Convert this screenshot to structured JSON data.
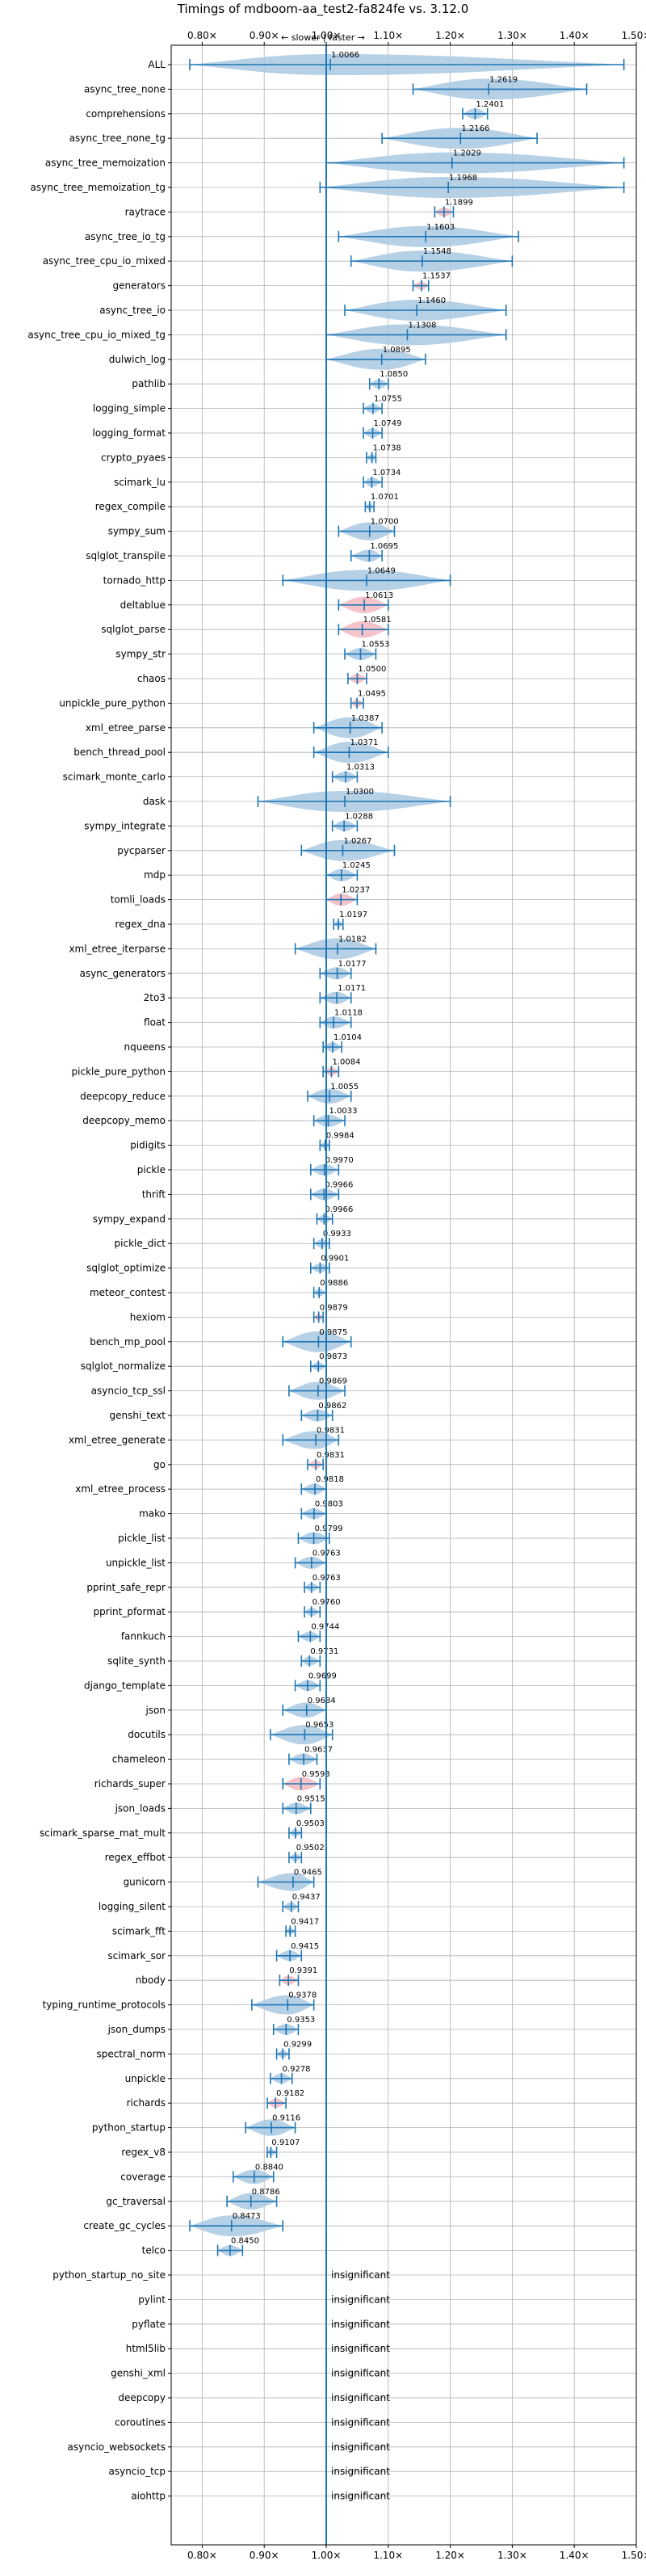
{
  "chart_data": {
    "type": "violin",
    "title": "Timings of mdboom-aa_test2-fa824fe vs. 3.12.0",
    "subtitle": "← slower | faster →",
    "xlim": [
      0.75,
      1.5
    ],
    "xticks": [
      {
        "v": 0.8,
        "label": "0.80×"
      },
      {
        "v": 0.9,
        "label": "0.90×"
      },
      {
        "v": 1.0,
        "label": "1.00×"
      },
      {
        "v": 1.1,
        "label": "1.10×"
      },
      {
        "v": 1.2,
        "label": "1.20×"
      },
      {
        "v": 1.3,
        "label": "1.30×"
      },
      {
        "v": 1.4,
        "label": "1.40×"
      },
      {
        "v": 1.5,
        "label": "1.50×"
      }
    ],
    "grid": true,
    "reference_line": 1.0,
    "insignificant_label": "insignificant",
    "colors": {
      "normal": "#a9c8e2",
      "highlight": "#f3b8bf",
      "line": "#1f77b4",
      "grid": "#b0b0b0"
    },
    "benchmarks": [
      {
        "name": "ALL",
        "median": 1.0066,
        "label": "1.0066",
        "min": 0.78,
        "max": 1.48,
        "hl": false
      },
      {
        "name": "async_tree_none",
        "median": 1.2619,
        "label": "1.2619",
        "min": 1.14,
        "max": 1.42,
        "hl": false
      },
      {
        "name": "comprehensions",
        "median": 1.2401,
        "label": "1.2401",
        "min": 1.22,
        "max": 1.26,
        "hl": false
      },
      {
        "name": "async_tree_none_tg",
        "median": 1.2166,
        "label": "1.2166",
        "min": 1.09,
        "max": 1.34,
        "hl": false
      },
      {
        "name": "async_tree_memoization",
        "median": 1.2029,
        "label": "1.2029",
        "min": 1.0,
        "max": 1.48,
        "hl": false
      },
      {
        "name": "async_tree_memoization_tg",
        "median": 1.1968,
        "label": "1.1968",
        "min": 0.99,
        "max": 1.48,
        "hl": false
      },
      {
        "name": "raytrace",
        "median": 1.1899,
        "label": "1.1899",
        "min": 1.175,
        "max": 1.205,
        "hl": true
      },
      {
        "name": "async_tree_io_tg",
        "median": 1.1603,
        "label": "1.1603",
        "min": 1.02,
        "max": 1.31,
        "hl": false
      },
      {
        "name": "async_tree_cpu_io_mixed",
        "median": 1.1548,
        "label": "1.1548",
        "min": 1.04,
        "max": 1.3,
        "hl": false
      },
      {
        "name": "generators",
        "median": 1.1537,
        "label": "1.1537",
        "min": 1.14,
        "max": 1.165,
        "hl": true
      },
      {
        "name": "async_tree_io",
        "median": 1.146,
        "label": "1.1460",
        "min": 1.03,
        "max": 1.29,
        "hl": false
      },
      {
        "name": "async_tree_cpu_io_mixed_tg",
        "median": 1.1308,
        "label": "1.1308",
        "min": 1.0,
        "max": 1.29,
        "hl": false
      },
      {
        "name": "dulwich_log",
        "median": 1.0895,
        "label": "1.0895",
        "min": 1.0,
        "max": 1.16,
        "hl": false
      },
      {
        "name": "pathlib",
        "median": 1.085,
        "label": "1.0850",
        "min": 1.07,
        "max": 1.1,
        "hl": false
      },
      {
        "name": "logging_simple",
        "median": 1.0755,
        "label": "1.0755",
        "min": 1.06,
        "max": 1.09,
        "hl": false
      },
      {
        "name": "logging_format",
        "median": 1.0749,
        "label": "1.0749",
        "min": 1.06,
        "max": 1.09,
        "hl": false
      },
      {
        "name": "crypto_pyaes",
        "median": 1.0738,
        "label": "1.0738",
        "min": 1.065,
        "max": 1.08,
        "hl": false
      },
      {
        "name": "scimark_lu",
        "median": 1.0734,
        "label": "1.0734",
        "min": 1.06,
        "max": 1.09,
        "hl": false
      },
      {
        "name": "regex_compile",
        "median": 1.0701,
        "label": "1.0701",
        "min": 1.063,
        "max": 1.077,
        "hl": false
      },
      {
        "name": "sympy_sum",
        "median": 1.07,
        "label": "1.0700",
        "min": 1.02,
        "max": 1.11,
        "hl": false
      },
      {
        "name": "sqlglot_transpile",
        "median": 1.0695,
        "label": "1.0695",
        "min": 1.04,
        "max": 1.09,
        "hl": false
      },
      {
        "name": "tornado_http",
        "median": 1.0649,
        "label": "1.0649",
        "min": 0.93,
        "max": 1.2,
        "hl": false
      },
      {
        "name": "deltablue",
        "median": 1.0613,
        "label": "1.0613",
        "min": 1.02,
        "max": 1.1,
        "hl": true
      },
      {
        "name": "sqlglot_parse",
        "median": 1.0581,
        "label": "1.0581",
        "min": 1.02,
        "max": 1.1,
        "hl": true
      },
      {
        "name": "sympy_str",
        "median": 1.0553,
        "label": "1.0553",
        "min": 1.03,
        "max": 1.08,
        "hl": false
      },
      {
        "name": "chaos",
        "median": 1.05,
        "label": "1.0500",
        "min": 1.035,
        "max": 1.065,
        "hl": true
      },
      {
        "name": "unpickle_pure_python",
        "median": 1.0495,
        "label": "1.0495",
        "min": 1.04,
        "max": 1.06,
        "hl": true
      },
      {
        "name": "xml_etree_parse",
        "median": 1.0387,
        "label": "1.0387",
        "min": 0.98,
        "max": 1.09,
        "hl": false
      },
      {
        "name": "bench_thread_pool",
        "median": 1.0371,
        "label": "1.0371",
        "min": 0.98,
        "max": 1.1,
        "hl": false
      },
      {
        "name": "scimark_monte_carlo",
        "median": 1.0313,
        "label": "1.0313",
        "min": 1.01,
        "max": 1.05,
        "hl": false
      },
      {
        "name": "dask",
        "median": 1.03,
        "label": "1.0300",
        "min": 0.89,
        "max": 1.2,
        "hl": false
      },
      {
        "name": "sympy_integrate",
        "median": 1.0288,
        "label": "1.0288",
        "min": 1.01,
        "max": 1.05,
        "hl": false
      },
      {
        "name": "pycparser",
        "median": 1.0267,
        "label": "1.0267",
        "min": 0.96,
        "max": 1.11,
        "hl": false
      },
      {
        "name": "mdp",
        "median": 1.0245,
        "label": "1.0245",
        "min": 1.0,
        "max": 1.05,
        "hl": false
      },
      {
        "name": "tomli_loads",
        "median": 1.0237,
        "label": "1.0237",
        "min": 1.0,
        "max": 1.05,
        "hl": true
      },
      {
        "name": "regex_dna",
        "median": 1.0197,
        "label": "1.0197",
        "min": 1.012,
        "max": 1.027,
        "hl": false
      },
      {
        "name": "xml_etree_iterparse",
        "median": 1.0182,
        "label": "1.0182",
        "min": 0.95,
        "max": 1.08,
        "hl": false
      },
      {
        "name": "async_generators",
        "median": 1.0177,
        "label": "1.0177",
        "min": 0.99,
        "max": 1.04,
        "hl": false
      },
      {
        "name": "2to3",
        "median": 1.0171,
        "label": "1.0171",
        "min": 0.99,
        "max": 1.04,
        "hl": false
      },
      {
        "name": "float",
        "median": 1.0118,
        "label": "1.0118",
        "min": 0.99,
        "max": 1.04,
        "hl": false
      },
      {
        "name": "nqueens",
        "median": 1.0104,
        "label": "1.0104",
        "min": 0.995,
        "max": 1.025,
        "hl": false
      },
      {
        "name": "pickle_pure_python",
        "median": 1.0084,
        "label": "1.0084",
        "min": 0.995,
        "max": 1.02,
        "hl": true
      },
      {
        "name": "deepcopy_reduce",
        "median": 1.0055,
        "label": "1.0055",
        "min": 0.97,
        "max": 1.04,
        "hl": false
      },
      {
        "name": "deepcopy_memo",
        "median": 1.0033,
        "label": "1.0033",
        "min": 0.98,
        "max": 1.03,
        "hl": false
      },
      {
        "name": "pidigits",
        "median": 0.9984,
        "label": "0.9984",
        "min": 0.99,
        "max": 1.005,
        "hl": false
      },
      {
        "name": "pickle",
        "median": 0.997,
        "label": "0.9970",
        "min": 0.975,
        "max": 1.02,
        "hl": false
      },
      {
        "name": "thrift",
        "median": 0.9966,
        "label": "0.9966",
        "min": 0.975,
        "max": 1.02,
        "hl": false
      },
      {
        "name": "sympy_expand",
        "median": 0.9966,
        "label": "0.9966",
        "min": 0.985,
        "max": 1.01,
        "hl": false
      },
      {
        "name": "pickle_dict",
        "median": 0.9933,
        "label": "0.9933",
        "min": 0.98,
        "max": 1.005,
        "hl": false
      },
      {
        "name": "sqlglot_optimize",
        "median": 0.9901,
        "label": "0.9901",
        "min": 0.975,
        "max": 1.005,
        "hl": false
      },
      {
        "name": "meteor_contest",
        "median": 0.9886,
        "label": "0.9886",
        "min": 0.98,
        "max": 1.0,
        "hl": false
      },
      {
        "name": "hexiom",
        "median": 0.9879,
        "label": "0.9879",
        "min": 0.98,
        "max": 0.995,
        "hl": true
      },
      {
        "name": "bench_mp_pool",
        "median": 0.9875,
        "label": "0.9875",
        "min": 0.93,
        "max": 1.04,
        "hl": false
      },
      {
        "name": "sqlglot_normalize",
        "median": 0.9873,
        "label": "0.9873",
        "min": 0.975,
        "max": 1.0,
        "hl": false
      },
      {
        "name": "asyncio_tcp_ssl",
        "median": 0.9869,
        "label": "0.9869",
        "min": 0.94,
        "max": 1.03,
        "hl": false
      },
      {
        "name": "genshi_text",
        "median": 0.9862,
        "label": "0.9862",
        "min": 0.96,
        "max": 1.01,
        "hl": false
      },
      {
        "name": "xml_etree_generate",
        "median": 0.9831,
        "label": "0.9831",
        "min": 0.93,
        "max": 1.02,
        "hl": false
      },
      {
        "name": "go",
        "median": 0.9831,
        "label": "0.9831",
        "min": 0.97,
        "max": 0.995,
        "hl": true
      },
      {
        "name": "xml_etree_process",
        "median": 0.9818,
        "label": "0.9818",
        "min": 0.96,
        "max": 1.0,
        "hl": false
      },
      {
        "name": "mako",
        "median": 0.9803,
        "label": "0.9803",
        "min": 0.96,
        "max": 1.0,
        "hl": false
      },
      {
        "name": "pickle_list",
        "median": 0.9799,
        "label": "0.9799",
        "min": 0.955,
        "max": 1.005,
        "hl": false
      },
      {
        "name": "unpickle_list",
        "median": 0.9763,
        "label": "0.9763",
        "min": 0.95,
        "max": 1.0,
        "hl": false
      },
      {
        "name": "pprint_safe_repr",
        "median": 0.9763,
        "label": "0.9763",
        "min": 0.965,
        "max": 0.99,
        "hl": false
      },
      {
        "name": "pprint_pformat",
        "median": 0.976,
        "label": "0.9760",
        "min": 0.965,
        "max": 0.99,
        "hl": false
      },
      {
        "name": "fannkuch",
        "median": 0.9744,
        "label": "0.9744",
        "min": 0.955,
        "max": 0.99,
        "hl": false
      },
      {
        "name": "sqlite_synth",
        "median": 0.9731,
        "label": "0.9731",
        "min": 0.96,
        "max": 0.99,
        "hl": false
      },
      {
        "name": "django_template",
        "median": 0.9699,
        "label": "0.9699",
        "min": 0.95,
        "max": 0.99,
        "hl": false
      },
      {
        "name": "json",
        "median": 0.9684,
        "label": "0.9684",
        "min": 0.93,
        "max": 1.0,
        "hl": false
      },
      {
        "name": "docutils",
        "median": 0.9653,
        "label": "0.9653",
        "min": 0.91,
        "max": 1.01,
        "hl": false
      },
      {
        "name": "chameleon",
        "median": 0.9637,
        "label": "0.9637",
        "min": 0.94,
        "max": 0.985,
        "hl": false
      },
      {
        "name": "richards_super",
        "median": 0.9593,
        "label": "0.9593",
        "min": 0.93,
        "max": 0.99,
        "hl": true
      },
      {
        "name": "json_loads",
        "median": 0.9515,
        "label": "0.9515",
        "min": 0.93,
        "max": 0.975,
        "hl": false
      },
      {
        "name": "scimark_sparse_mat_mult",
        "median": 0.9503,
        "label": "0.9503",
        "min": 0.94,
        "max": 0.96,
        "hl": false
      },
      {
        "name": "regex_effbot",
        "median": 0.9502,
        "label": "0.9502",
        "min": 0.94,
        "max": 0.96,
        "hl": false
      },
      {
        "name": "gunicorn",
        "median": 0.9465,
        "label": "0.9465",
        "min": 0.89,
        "max": 0.98,
        "hl": false
      },
      {
        "name": "logging_silent",
        "median": 0.9437,
        "label": "0.9437",
        "min": 0.93,
        "max": 0.955,
        "hl": false
      },
      {
        "name": "scimark_fft",
        "median": 0.9417,
        "label": "0.9417",
        "min": 0.935,
        "max": 0.95,
        "hl": false
      },
      {
        "name": "scimark_sor",
        "median": 0.9415,
        "label": "0.9415",
        "min": 0.92,
        "max": 0.96,
        "hl": false
      },
      {
        "name": "nbody",
        "median": 0.9391,
        "label": "0.9391",
        "min": 0.925,
        "max": 0.955,
        "hl": true
      },
      {
        "name": "typing_runtime_protocols",
        "median": 0.9378,
        "label": "0.9378",
        "min": 0.88,
        "max": 0.98,
        "hl": false
      },
      {
        "name": "json_dumps",
        "median": 0.9353,
        "label": "0.9353",
        "min": 0.915,
        "max": 0.955,
        "hl": false
      },
      {
        "name": "spectral_norm",
        "median": 0.9299,
        "label": "0.9299",
        "min": 0.92,
        "max": 0.94,
        "hl": false
      },
      {
        "name": "unpickle",
        "median": 0.9278,
        "label": "0.9278",
        "min": 0.91,
        "max": 0.945,
        "hl": false
      },
      {
        "name": "richards",
        "median": 0.9182,
        "label": "0.9182",
        "min": 0.905,
        "max": 0.935,
        "hl": true
      },
      {
        "name": "python_startup",
        "median": 0.9116,
        "label": "0.9116",
        "min": 0.87,
        "max": 0.95,
        "hl": false
      },
      {
        "name": "regex_v8",
        "median": 0.9107,
        "label": "0.9107",
        "min": 0.905,
        "max": 0.92,
        "hl": false
      },
      {
        "name": "coverage",
        "median": 0.884,
        "label": "0.8840",
        "min": 0.85,
        "max": 0.915,
        "hl": false
      },
      {
        "name": "gc_traversal",
        "median": 0.8786,
        "label": "0.8786",
        "min": 0.84,
        "max": 0.92,
        "hl": false
      },
      {
        "name": "create_gc_cycles",
        "median": 0.8473,
        "label": "0.8473",
        "min": 0.78,
        "max": 0.93,
        "hl": false
      },
      {
        "name": "telco",
        "median": 0.845,
        "label": "0.8450",
        "min": 0.825,
        "max": 0.865,
        "hl": false
      },
      {
        "name": "python_startup_no_site",
        "insignificant": true
      },
      {
        "name": "pylint",
        "insignificant": true
      },
      {
        "name": "pyflate",
        "insignificant": true
      },
      {
        "name": "html5lib",
        "insignificant": true
      },
      {
        "name": "genshi_xml",
        "insignificant": true
      },
      {
        "name": "deepcopy",
        "insignificant": true
      },
      {
        "name": "coroutines",
        "insignificant": true
      },
      {
        "name": "asyncio_websockets",
        "insignificant": true
      },
      {
        "name": "asyncio_tcp",
        "insignificant": true
      },
      {
        "name": "aiohttp",
        "insignificant": true
      }
    ]
  }
}
